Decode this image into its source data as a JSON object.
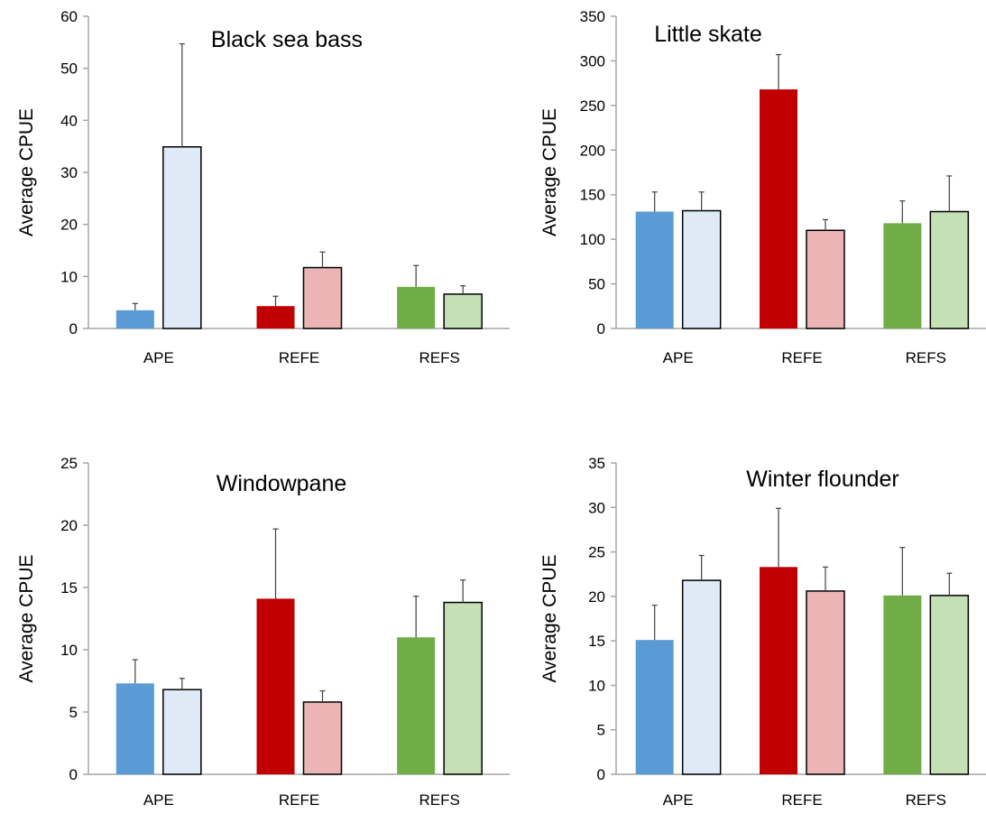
{
  "colors": {
    "APE_solid": "#5b9bd5",
    "APE_light": "#deebf7",
    "REFE_solid": "#c00000",
    "REFE_light": "#ebb5b5",
    "REFS_solid": "#70ad47",
    "REFS_light": "#c5e0b4",
    "axis": "#a6a6a6",
    "error_bar": "#404040"
  },
  "chart_data": [
    {
      "type": "bar",
      "title": "Black sea bass",
      "ylabel": "Average CPUE",
      "categories": [
        "APE",
        "REFE",
        "REFS"
      ],
      "ylim": [
        0,
        60
      ],
      "yticks": [
        "0",
        "10",
        "20",
        "30",
        "40",
        "50",
        "60"
      ],
      "ytick_values": [
        0,
        10,
        20,
        30,
        40,
        50,
        60
      ],
      "grid": false,
      "series": [
        {
          "values": [
            3.5,
            4.3,
            8.0
          ],
          "errors": [
            1.3,
            1.9,
            4.1
          ],
          "fill": "solid",
          "outline": false
        },
        {
          "values": [
            34.9,
            11.7,
            6.6
          ],
          "errors": [
            19.8,
            3.0,
            1.6
          ],
          "fill": "light",
          "outline": true
        }
      ]
    },
    {
      "type": "bar",
      "title": "Little skate",
      "ylabel": "Average CPUE",
      "categories": [
        "APE",
        "REFE",
        "REFS"
      ],
      "ylim": [
        0,
        350
      ],
      "yticks": [
        "0",
        "50",
        "100",
        "150",
        "200",
        "250",
        "300",
        "350"
      ],
      "ytick_values": [
        0,
        50,
        100,
        150,
        200,
        250,
        300,
        350
      ],
      "grid": false,
      "series": [
        {
          "values": [
            131,
            268,
            118
          ],
          "errors": [
            22,
            39,
            25
          ],
          "fill": "solid",
          "outline": false
        },
        {
          "values": [
            132,
            110,
            131
          ],
          "errors": [
            21,
            12,
            40
          ],
          "fill": "light",
          "outline": true
        }
      ]
    },
    {
      "type": "bar",
      "title": "Windowpane",
      "ylabel": "Average CPUE",
      "categories": [
        "APE",
        "REFE",
        "REFS"
      ],
      "ylim": [
        0,
        25
      ],
      "yticks": [
        "0",
        "5",
        "10",
        "15",
        "20",
        "25"
      ],
      "ytick_values": [
        0,
        5,
        10,
        15,
        20,
        25
      ],
      "grid": false,
      "series": [
        {
          "values": [
            7.3,
            14.1,
            11.0
          ],
          "errors": [
            1.9,
            5.6,
            3.3
          ],
          "fill": "solid",
          "outline": false
        },
        {
          "values": [
            6.8,
            5.8,
            13.8
          ],
          "errors": [
            0.9,
            0.9,
            1.8
          ],
          "fill": "light",
          "outline": true
        }
      ]
    },
    {
      "type": "bar",
      "title": "Winter flounder",
      "ylabel": "Average CPUE",
      "categories": [
        "APE",
        "REFE",
        "REFS"
      ],
      "ylim": [
        0,
        35
      ],
      "yticks": [
        "0",
        "5",
        "10",
        "15",
        "20",
        "25",
        "30",
        "35"
      ],
      "ytick_values": [
        0,
        5,
        10,
        15,
        20,
        25,
        30,
        35
      ],
      "grid": false,
      "series": [
        {
          "values": [
            15.1,
            23.3,
            20.1
          ],
          "errors": [
            3.9,
            6.6,
            5.4
          ],
          "fill": "solid",
          "outline": false
        },
        {
          "values": [
            21.8,
            20.6,
            20.1
          ],
          "errors": [
            2.8,
            2.7,
            2.5
          ],
          "fill": "light",
          "outline": true
        }
      ]
    }
  ]
}
